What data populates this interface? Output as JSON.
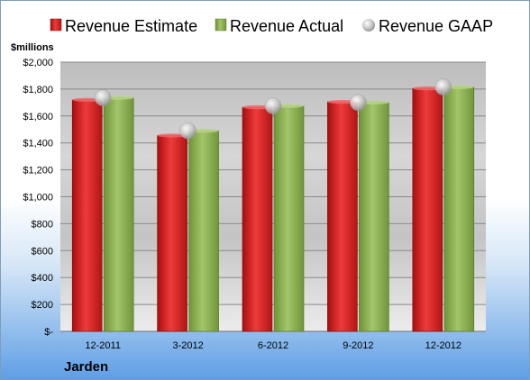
{
  "chart_data": {
    "type": "bar",
    "company": "Jarden",
    "unit_label": "$millions",
    "categories": [
      "12-2011",
      "3-2012",
      "6-2012",
      "9-2012",
      "12-2012"
    ],
    "series": [
      {
        "name": "Revenue Estimate",
        "kind": "bar",
        "color": "#e02020",
        "values": [
          1720,
          1455,
          1665,
          1705,
          1805
        ]
      },
      {
        "name": "Revenue Actual",
        "kind": "bar",
        "color": "#8ab04e",
        "values": [
          1735,
          1490,
          1675,
          1700,
          1815
        ]
      },
      {
        "name": "Revenue GAAP",
        "kind": "marker",
        "color": "#c8c8c8",
        "values": [
          1735,
          1490,
          1675,
          1700,
          1815
        ]
      }
    ],
    "y_ticks": [
      "$-",
      "$200",
      "$400",
      "$600",
      "$800",
      "$1,000",
      "$1,200",
      "$1,400",
      "$1,600",
      "$1,800",
      "$2,000"
    ],
    "ylim": [
      0,
      2000
    ],
    "y_step": 200,
    "grid": true,
    "legend_position": "top"
  }
}
